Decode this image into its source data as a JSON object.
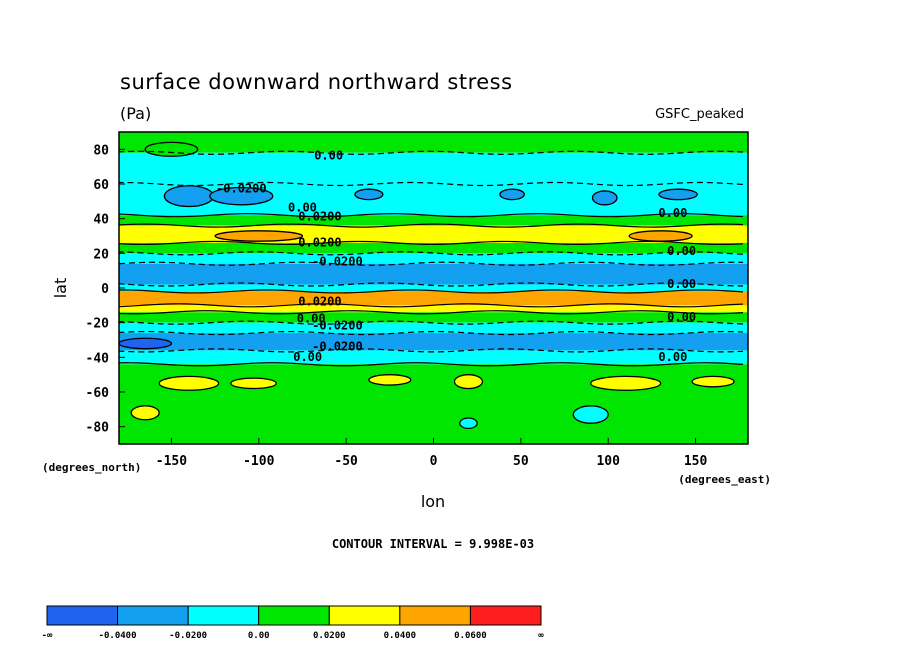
{
  "chart_data": {
    "type": "heatmap",
    "title": "surface downward northward stress",
    "units": "(Pa)",
    "model_label": "GSFC_peaked",
    "xlabel": "lon",
    "ylabel": "lat",
    "x_units": "(degrees_east)",
    "y_units": "(degrees_north)",
    "xlim": [
      -180,
      180
    ],
    "ylim": [
      -90,
      90
    ],
    "x_ticks": [
      "-150",
      "-100",
      "-50",
      "0",
      "50",
      "100",
      "150"
    ],
    "y_ticks": [
      "80",
      "60",
      "40",
      "20",
      "0",
      "-20",
      "-40",
      "-60",
      "-80"
    ],
    "contour_interval_text": "CONTOUR INTERVAL = 9.998E-03",
    "colorbar": {
      "labels": [
        "-∞",
        "-0.0400",
        "-0.0200",
        "0.00",
        "0.0200",
        "0.0400",
        "0.0600",
        "∞"
      ],
      "colors": [
        "#1e64f0",
        "#13a0f0",
        "#00ffff",
        "#00e600",
        "#ffff00",
        "#ffa500",
        "#ff1e1e"
      ]
    },
    "zonal_bands": [
      {
        "lat_from": 90,
        "lat_to": 78,
        "level": "0.00 to 0.0200"
      },
      {
        "lat_from": 78,
        "lat_to": 60,
        "level": "-0.0200 to 0.00"
      },
      {
        "lat_from": 60,
        "lat_to": 42,
        "level": "-0.0200 to 0.00"
      },
      {
        "lat_from": 42,
        "lat_to": 36,
        "level": "0.00 to 0.0200"
      },
      {
        "lat_from": 36,
        "lat_to": 26,
        "level": "0.0200 to 0.0400"
      },
      {
        "lat_from": 26,
        "lat_to": 20,
        "level": "0.00 to 0.0200"
      },
      {
        "lat_from": 20,
        "lat_to": 14,
        "level": "-0.0200 to 0.00"
      },
      {
        "lat_from": 14,
        "lat_to": 2,
        "level": "-0.0400 to -0.0200"
      },
      {
        "lat_from": 2,
        "lat_to": -2,
        "level": "-0.0200 to 0.00"
      },
      {
        "lat_from": -2,
        "lat_to": -10,
        "level": "0.0400 to 0.0600"
      },
      {
        "lat_from": -10,
        "lat_to": -14,
        "level": "0.0200 to 0.0400"
      },
      {
        "lat_from": -14,
        "lat_to": -20,
        "level": "0.00 to 0.0200"
      },
      {
        "lat_from": -20,
        "lat_to": -26,
        "level": "-0.0200 to 0.00"
      },
      {
        "lat_from": -26,
        "lat_to": -36,
        "level": "-0.0400 to -0.0200"
      },
      {
        "lat_from": -36,
        "lat_to": -44,
        "level": "-0.0200 to 0.00"
      },
      {
        "lat_from": -44,
        "lat_to": -90,
        "level": "0.00 to 0.0200"
      }
    ],
    "contour_labels": [
      {
        "text": "0.00",
        "lon": -60,
        "lat": 74
      },
      {
        "text": "-0.0200",
        "lon": -110,
        "lat": 55
      },
      {
        "text": "0.00",
        "lon": -75,
        "lat": 44
      },
      {
        "text": "0.0200",
        "lon": -65,
        "lat": 39
      },
      {
        "text": "0.00",
        "lon": 137,
        "lat": 41
      },
      {
        "text": "0.0200",
        "lon": -65,
        "lat": 24
      },
      {
        "text": "0.00",
        "lon": 142,
        "lat": 19
      },
      {
        "text": "-0.0200",
        "lon": -55,
        "lat": 13
      },
      {
        "text": "0.00",
        "lon": 142,
        "lat": 0
      },
      {
        "text": "0.0200",
        "lon": -65,
        "lat": -10
      },
      {
        "text": "0.00",
        "lon": -70,
        "lat": -20
      },
      {
        "text": "0.00",
        "lon": 142,
        "lat": -19
      },
      {
        "text": "-0.0200",
        "lon": -55,
        "lat": -24
      },
      {
        "text": "-0.0200",
        "lon": -55,
        "lat": -36
      },
      {
        "text": "0.00",
        "lon": -72,
        "lat": -42
      },
      {
        "text": "0.00",
        "lon": 137,
        "lat": -42
      }
    ],
    "blobs": [
      {
        "lon": -140,
        "lat": 53,
        "rlon": 14,
        "rlat": 6,
        "level": "-0.0400 to -0.0200"
      },
      {
        "lon": -110,
        "lat": 53,
        "rlon": 18,
        "rlat": 5,
        "level": "-0.0400 to -0.0200"
      },
      {
        "lon": -37,
        "lat": 54,
        "rlon": 8,
        "rlat": 3,
        "level": "-0.0400 to -0.0200"
      },
      {
        "lon": 45,
        "lat": 54,
        "rlon": 7,
        "rlat": 3,
        "level": "-0.0400 to -0.0200"
      },
      {
        "lon": 98,
        "lat": 52,
        "rlon": 7,
        "rlat": 4,
        "level": "-0.0400 to -0.0200"
      },
      {
        "lon": 140,
        "lat": 54,
        "rlon": 11,
        "rlat": 3,
        "level": "-0.0400 to -0.0200"
      },
      {
        "lon": -100,
        "lat": 30,
        "rlon": 25,
        "rlat": 3,
        "level": "0.0400 to 0.0600"
      },
      {
        "lon": 130,
        "lat": 30,
        "rlon": 18,
        "rlat": 3,
        "level": "0.0400 to 0.0600"
      },
      {
        "lon": -165,
        "lat": -32,
        "rlon": 15,
        "rlat": 3,
        "level": "below -0.0400"
      },
      {
        "lon": -140,
        "lat": -55,
        "rlon": 17,
        "rlat": 4,
        "level": "0.0200 to 0.0400"
      },
      {
        "lon": -103,
        "lat": -55,
        "rlon": 13,
        "rlat": 3,
        "level": "0.0200 to 0.0400"
      },
      {
        "lon": -25,
        "lat": -53,
        "rlon": 12,
        "rlat": 3,
        "level": "0.0200 to 0.0400"
      },
      {
        "lon": 20,
        "lat": -54,
        "rlon": 8,
        "rlat": 4,
        "level": "0.0200 to 0.0400"
      },
      {
        "lon": 110,
        "lat": -55,
        "rlon": 20,
        "rlat": 4,
        "level": "0.0200 to 0.0400"
      },
      {
        "lon": 160,
        "lat": -54,
        "rlon": 12,
        "rlat": 3,
        "level": "0.0200 to 0.0400"
      },
      {
        "lon": 90,
        "lat": -73,
        "rlon": 10,
        "rlat": 5,
        "level": "-0.0200 to 0.00"
      },
      {
        "lon": 20,
        "lat": -78,
        "rlon": 5,
        "rlat": 3,
        "level": "-0.0200 to 0.00"
      },
      {
        "lon": -165,
        "lat": -72,
        "rlon": 8,
        "rlat": 4,
        "level": "0.0200 to 0.0400"
      },
      {
        "lon": -150,
        "lat": 80,
        "rlon": 15,
        "rlat": 4,
        "level": "0.00 to 0.0200"
      }
    ]
  }
}
